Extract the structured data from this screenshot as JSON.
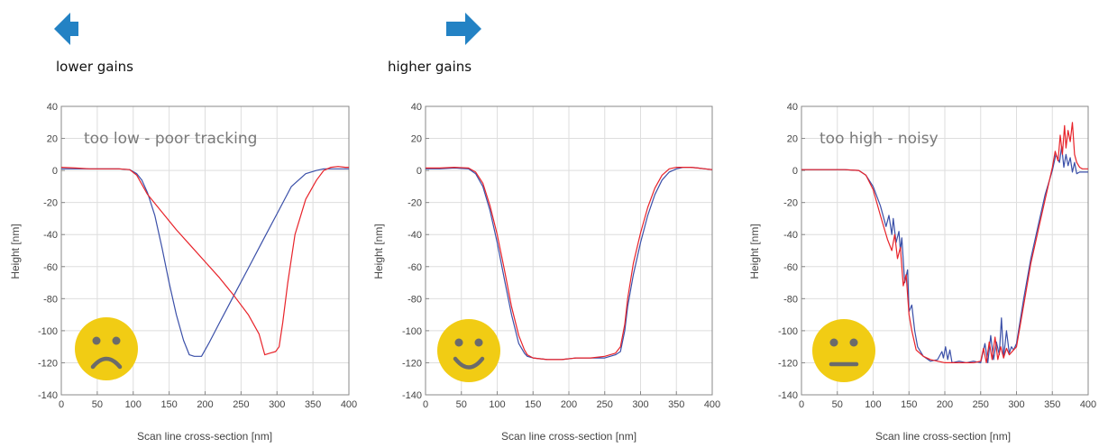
{
  "arrows": [
    {
      "direction": "left",
      "label": "lower gains",
      "color": "#2382c4"
    },
    {
      "direction": "right",
      "label": "higher gains",
      "color": "#2382c4"
    }
  ],
  "colors": {
    "trace": "#3a4fa8",
    "retrace": "#e8232a",
    "face": "#f1cc14",
    "face_features": "#6b6b6b"
  },
  "chart_data": [
    {
      "type": "line",
      "annotation": "too low - poor tracking",
      "face": "sad-face-icon",
      "xlabel": "Scan line cross-section [nm]",
      "ylabel": "Height [nm]",
      "xlim": [
        0,
        400
      ],
      "ylim": [
        -140,
        40
      ],
      "xticks": [
        "0",
        "50",
        "100",
        "150",
        "200",
        "250",
        "300",
        "350",
        "400"
      ],
      "yticks": [
        "40",
        "20",
        "0",
        "-20",
        "-40",
        "-60",
        "-80",
        "-100",
        "-120",
        "-140"
      ],
      "grid": true,
      "series": [
        {
          "color": "#3a4fa8",
          "x": [
            0,
            20,
            40,
            60,
            80,
            95,
            105,
            112,
            120,
            130,
            140,
            150,
            160,
            170,
            178,
            185,
            195,
            205,
            220,
            240,
            260,
            280,
            300,
            320,
            340,
            355,
            365,
            375,
            385,
            395,
            400
          ],
          "y": [
            1,
            1,
            1,
            1,
            1,
            0.5,
            -2,
            -6,
            -14,
            -28,
            -48,
            -70,
            -90,
            -106,
            -115,
            -116,
            -116,
            -108,
            -95,
            -78,
            -61,
            -44,
            -27,
            -10,
            -2,
            0,
            1,
            1,
            1,
            1,
            1
          ]
        },
        {
          "color": "#e8232a",
          "x": [
            0,
            20,
            40,
            60,
            80,
            95,
            105,
            120,
            140,
            160,
            180,
            200,
            220,
            240,
            260,
            275,
            283,
            290,
            298,
            303,
            308,
            315,
            325,
            340,
            355,
            365,
            375,
            385,
            395,
            400
          ],
          "y": [
            2,
            1.5,
            1,
            1,
            1,
            0.5,
            -3,
            -15,
            -26,
            -37,
            -47,
            -57,
            -67,
            -78,
            -90,
            -102,
            -115,
            -114,
            -113,
            -110,
            -95,
            -70,
            -40,
            -18,
            -6,
            0,
            2,
            2.5,
            2,
            2
          ]
        }
      ]
    },
    {
      "type": "line",
      "annotation": "",
      "face": "happy-face-icon",
      "xlabel": "Scan line cross-section [nm]",
      "ylabel": "Height [nm]",
      "xlim": [
        0,
        400
      ],
      "ylim": [
        -140,
        40
      ],
      "xticks": [
        "0",
        "50",
        "100",
        "150",
        "200",
        "250",
        "300",
        "350",
        "400"
      ],
      "yticks": [
        "40",
        "20",
        "0",
        "-20",
        "-40",
        "-60",
        "-80",
        "-100",
        "-120",
        "-140"
      ],
      "grid": true,
      "series": [
        {
          "color": "#3a4fa8",
          "x": [
            0,
            20,
            40,
            60,
            70,
            80,
            90,
            100,
            110,
            120,
            130,
            138,
            142,
            150,
            170,
            190,
            210,
            230,
            250,
            265,
            272,
            278,
            282,
            290,
            300,
            310,
            320,
            330,
            340,
            350,
            360,
            370,
            380,
            390,
            400
          ],
          "y": [
            1,
            1,
            1.5,
            1,
            -2,
            -10,
            -25,
            -45,
            -68,
            -90,
            -108,
            -114,
            -116,
            -117,
            -118,
            -118,
            -117,
            -117,
            -117,
            -115,
            -113,
            -100,
            -85,
            -65,
            -45,
            -28,
            -15,
            -6,
            -1,
            1,
            2,
            2,
            1.5,
            1,
            0.5
          ]
        },
        {
          "color": "#e8232a",
          "x": [
            0,
            20,
            40,
            60,
            70,
            80,
            90,
            100,
            110,
            120,
            130,
            138,
            142,
            150,
            170,
            190,
            210,
            230,
            250,
            265,
            272,
            278,
            282,
            290,
            300,
            310,
            320,
            330,
            340,
            350,
            360,
            370,
            380,
            390,
            400
          ],
          "y": [
            1.5,
            1.5,
            2,
            1.5,
            -1,
            -8,
            -22,
            -40,
            -62,
            -85,
            -103,
            -112,
            -115,
            -117,
            -118,
            -118,
            -117,
            -117,
            -116,
            -114,
            -110,
            -96,
            -80,
            -58,
            -39,
            -23,
            -11,
            -3,
            1,
            2,
            2,
            2,
            1.5,
            1,
            0.5
          ]
        }
      ]
    },
    {
      "type": "line",
      "annotation": "too high - noisy",
      "face": "neutral-face-icon",
      "xlabel": "Scan line cross-section [nm]",
      "ylabel": "Height [nm]",
      "xlim": [
        0,
        400
      ],
      "ylim": [
        -140,
        40
      ],
      "xticks": [
        "0",
        "50",
        "100",
        "150",
        "200",
        "250",
        "300",
        "350",
        "400"
      ],
      "yticks": [
        "40",
        "20",
        "0",
        "-20",
        "-40",
        "-60",
        "-80",
        "-100",
        "-120",
        "-140"
      ],
      "grid": true,
      "series": [
        {
          "color": "#3a4fa8",
          "x": [
            0,
            20,
            40,
            60,
            80,
            90,
            100,
            110,
            118,
            122,
            126,
            128,
            132,
            136,
            138,
            140,
            144,
            148,
            150,
            154,
            158,
            162,
            170,
            180,
            190,
            196,
            198,
            201,
            204,
            207,
            210,
            220,
            230,
            240,
            250,
            256,
            260,
            264,
            268,
            272,
            276,
            279,
            282,
            286,
            290,
            293,
            296,
            300,
            310,
            320,
            330,
            340,
            350,
            355,
            360,
            363,
            366,
            369,
            372,
            375,
            378,
            381,
            384,
            388,
            392,
            396,
            400
          ],
          "y": [
            0.5,
            0.5,
            0.5,
            0.5,
            0,
            -3,
            -10,
            -22,
            -35,
            -28,
            -40,
            -30,
            -45,
            -38,
            -50,
            -42,
            -70,
            -62,
            -88,
            -84,
            -100,
            -110,
            -116,
            -119,
            -118,
            -113,
            -117,
            -110,
            -118,
            -112,
            -120,
            -119,
            -120,
            -119,
            -120,
            -108,
            -120,
            -103,
            -118,
            -107,
            -115,
            -92,
            -117,
            -100,
            -114,
            -110,
            -112,
            -108,
            -80,
            -55,
            -35,
            -15,
            0,
            10,
            5,
            15,
            2,
            10,
            3,
            8,
            -1,
            5,
            -2,
            -1,
            -1,
            -1,
            -1
          ]
        },
        {
          "color": "#e8232a",
          "x": [
            0,
            20,
            40,
            60,
            80,
            90,
            100,
            110,
            120,
            126,
            130,
            134,
            138,
            142,
            146,
            150,
            154,
            160,
            170,
            180,
            190,
            200,
            210,
            220,
            230,
            240,
            250,
            254,
            258,
            262,
            266,
            270,
            274,
            278,
            282,
            286,
            290,
            296,
            300,
            310,
            320,
            330,
            340,
            350,
            354,
            358,
            361,
            364,
            367,
            369,
            372,
            375,
            378,
            381,
            384,
            388,
            392,
            396,
            400
          ],
          "y": [
            0.5,
            0.5,
            0.5,
            0.5,
            0,
            -3,
            -12,
            -28,
            -43,
            -50,
            -40,
            -55,
            -48,
            -72,
            -65,
            -90,
            -100,
            -112,
            -116,
            -118,
            -119,
            -120,
            -120,
            -120,
            -120,
            -120,
            -119,
            -111,
            -120,
            -107,
            -118,
            -104,
            -118,
            -110,
            -117,
            -111,
            -115,
            -112,
            -110,
            -84,
            -58,
            -38,
            -18,
            2,
            12,
            6,
            22,
            10,
            28,
            14,
            25,
            18,
            30,
            10,
            5,
            2,
            1,
            1,
            1
          ]
        }
      ]
    }
  ]
}
